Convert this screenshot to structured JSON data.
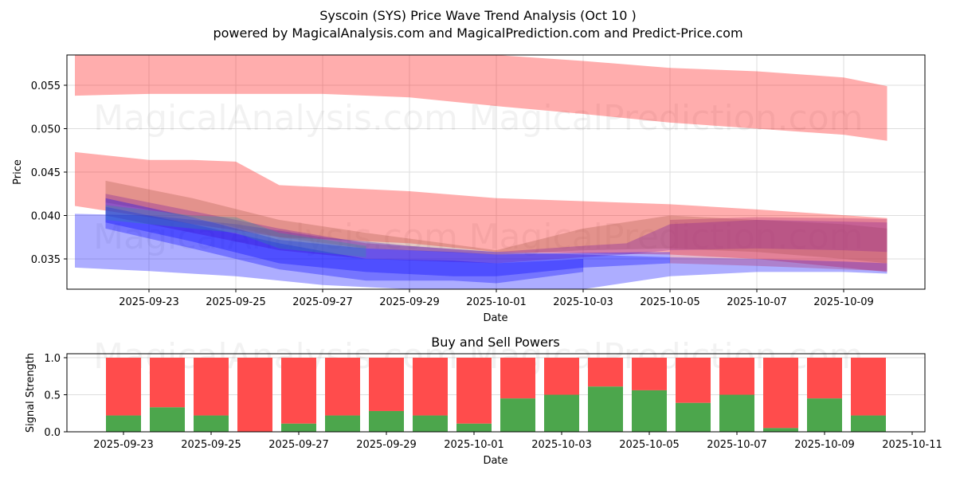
{
  "header": {
    "title": "Syscoin (SYS) Price Wave Trend Analysis (Oct 10 )",
    "subtitle": "powered by MagicalAnalysis.com and MagicalPrediction.com and Predict-Price.com"
  },
  "watermarks": [
    "MagicalAnalysis.com",
    "MagicalPrediction.com"
  ],
  "colors": {
    "sell_band": "#ff0000",
    "buy_band": "#0000ff",
    "buy_power": "#4ca64c",
    "sell_power": "#ff4c4c",
    "grid": "#dddddd"
  },
  "chart_data": [
    {
      "type": "area",
      "title": "",
      "xlabel": "Date",
      "ylabel": "Price",
      "xlim": [
        "2025-09-21",
        "2025-10-11"
      ],
      "ylim": [
        0.0315,
        0.0585
      ],
      "grid": true,
      "x_ticks": [
        "2025-09-23",
        "2025-09-25",
        "2025-09-27",
        "2025-09-29",
        "2025-10-01",
        "2025-10-03",
        "2025-10-05",
        "2025-10-07",
        "2025-10-09"
      ],
      "y_ticks": [
        "0.035",
        "0.040",
        "0.045",
        "0.050",
        "0.055"
      ],
      "series": [
        {
          "name": "upper-red-band",
          "color": "red",
          "x": [
            "2025-09-21",
            "2025-09-23",
            "2025-09-25",
            "2025-09-27",
            "2025-09-29",
            "2025-10-01",
            "2025-10-03",
            "2025-10-05",
            "2025-10-07",
            "2025-10-09",
            "2025-10-10"
          ],
          "upper": [
            0.0585,
            0.0585,
            0.0585,
            0.0585,
            0.0585,
            0.0585,
            0.0578,
            0.057,
            0.0566,
            0.0559,
            0.0549
          ],
          "lower": [
            0.0538,
            0.054,
            0.054,
            0.054,
            0.0536,
            0.0526,
            0.0517,
            0.0507,
            0.05,
            0.0493,
            0.0486
          ]
        },
        {
          "name": "mid-red-band",
          "color": "red",
          "x": [
            "2025-09-21",
            "2025-09-23",
            "2025-09-24",
            "2025-09-25",
            "2025-09-26",
            "2025-09-29",
            "2025-10-01",
            "2025-10-05",
            "2025-10-07",
            "2025-10-10"
          ],
          "upper": [
            0.0473,
            0.0464,
            0.0464,
            0.0462,
            0.0435,
            0.0428,
            0.042,
            0.0413,
            0.0407,
            0.0397
          ],
          "lower": [
            0.0411,
            0.0398,
            0.039,
            0.0383,
            0.0375,
            0.0368,
            0.0358,
            0.0355,
            0.035,
            0.0335
          ]
        },
        {
          "name": "lower-blue-band",
          "color": "blue",
          "x": [
            "2025-09-21",
            "2025-09-23",
            "2025-09-25",
            "2025-09-27",
            "2025-09-29",
            "2025-10-01",
            "2025-10-03",
            "2025-10-05",
            "2025-10-07",
            "2025-10-09",
            "2025-10-10"
          ],
          "upper": [
            0.0402,
            0.04,
            0.039,
            0.0375,
            0.0365,
            0.0358,
            0.0355,
            0.0352,
            0.035,
            0.0347,
            0.0345
          ],
          "lower": [
            0.034,
            0.0336,
            0.033,
            0.032,
            0.0315,
            0.0315,
            0.0315,
            0.033,
            0.0335,
            0.0335,
            0.0333
          ]
        },
        {
          "name": "brown-band",
          "color": "#b06050",
          "x": [
            "2025-09-22",
            "2025-09-24",
            "2025-09-26",
            "2025-09-28",
            "2025-10-01",
            "2025-10-03",
            "2025-10-05",
            "2025-10-07",
            "2025-10-09",
            "2025-10-10"
          ],
          "upper": [
            0.044,
            0.042,
            0.0395,
            0.038,
            0.036,
            0.0385,
            0.04,
            0.0395,
            0.039,
            0.0385
          ],
          "lower": [
            0.0415,
            0.0398,
            0.0375,
            0.0362,
            0.0355,
            0.036,
            0.0362,
            0.0358,
            0.035,
            0.0345
          ]
        },
        {
          "name": "purple-band",
          "color": "#8020a0",
          "x": [
            "2025-09-22",
            "2025-09-24",
            "2025-09-26",
            "2025-09-28",
            "2025-10-01",
            "2025-10-03",
            "2025-10-04",
            "2025-10-05",
            "2025-10-07",
            "2025-10-09",
            "2025-10-10"
          ],
          "upper": [
            0.0425,
            0.0405,
            0.0385,
            0.0368,
            0.0358,
            0.0365,
            0.0368,
            0.039,
            0.0395,
            0.0393,
            0.0392
          ],
          "lower": [
            0.04,
            0.038,
            0.036,
            0.035,
            0.0345,
            0.0352,
            0.0355,
            0.036,
            0.0362,
            0.036,
            0.0358
          ]
        },
        {
          "name": "blue-band-inner-1",
          "color": "blue",
          "x": [
            "2025-09-22",
            "2025-09-24",
            "2025-09-26",
            "2025-09-28",
            "2025-09-30",
            "2025-10-01",
            "2025-10-03",
            "2025-10-05"
          ],
          "upper": [
            0.042,
            0.0398,
            0.0372,
            0.0362,
            0.0358,
            0.0355,
            0.0357,
            0.0358
          ],
          "lower": [
            0.0392,
            0.037,
            0.0345,
            0.0335,
            0.033,
            0.033,
            0.034,
            0.0345
          ]
        },
        {
          "name": "blue-band-inner-2",
          "color": "blue",
          "x": [
            "2025-09-22",
            "2025-09-24",
            "2025-09-26",
            "2025-09-28",
            "2025-09-30",
            "2025-10-01",
            "2025-10-03"
          ],
          "upper": [
            0.041,
            0.039,
            0.0368,
            0.035,
            0.0348,
            0.0345,
            0.035
          ],
          "lower": [
            0.0385,
            0.0362,
            0.0338,
            0.0325,
            0.0325,
            0.0322,
            0.0335
          ]
        },
        {
          "name": "teal-band",
          "color": "#3090a0",
          "x": [
            "2025-09-22",
            "2025-09-24",
            "2025-09-25",
            "2025-09-26",
            "2025-09-28"
          ],
          "upper": [
            0.0412,
            0.04,
            0.0398,
            0.038,
            0.0365
          ],
          "lower": [
            0.0395,
            0.0385,
            0.038,
            0.0362,
            0.0352
          ]
        },
        {
          "name": "magenta-right-band",
          "color": "#b03070",
          "x": [
            "2025-10-05",
            "2025-10-07",
            "2025-10-09",
            "2025-10-10"
          ],
          "upper": [
            0.0395,
            0.0398,
            0.0397,
            0.0396
          ],
          "lower": [
            0.0345,
            0.0342,
            0.0338,
            0.0336
          ]
        }
      ]
    },
    {
      "type": "bar",
      "title": "Buy and Sell Powers",
      "xlabel": "Date",
      "ylabel": "Signal Strength",
      "ylim": [
        0,
        1.05
      ],
      "grid": true,
      "x_ticks": [
        "2025-09-23",
        "2025-09-25",
        "2025-09-27",
        "2025-09-29",
        "2025-10-01",
        "2025-10-03",
        "2025-10-05",
        "2025-10-07",
        "2025-10-09",
        "2025-10-11"
      ],
      "y_ticks": [
        "0.0",
        "0.5",
        "1.0"
      ],
      "categories": [
        "2025-09-23",
        "2025-09-24",
        "2025-09-25",
        "2025-09-26",
        "2025-09-27",
        "2025-09-28",
        "2025-09-29",
        "2025-09-30",
        "2025-10-01",
        "2025-10-02",
        "2025-10-03",
        "2025-10-04",
        "2025-10-05",
        "2025-10-06",
        "2025-10-07",
        "2025-10-08",
        "2025-10-09",
        "2025-10-10"
      ],
      "series": [
        {
          "name": "Buy Power",
          "color": "#4ca64c",
          "values": [
            0.22,
            0.33,
            0.22,
            0.0,
            0.11,
            0.22,
            0.28,
            0.22,
            0.11,
            0.45,
            0.5,
            0.61,
            0.56,
            0.39,
            0.5,
            0.05,
            0.45,
            0.22
          ]
        },
        {
          "name": "Sell Power",
          "color": "#ff4c4c",
          "values": [
            0.78,
            0.67,
            0.78,
            1.0,
            0.89,
            0.78,
            0.72,
            0.78,
            0.89,
            0.55,
            0.5,
            0.39,
            0.44,
            0.61,
            0.5,
            0.95,
            0.55,
            0.78
          ]
        }
      ]
    }
  ]
}
